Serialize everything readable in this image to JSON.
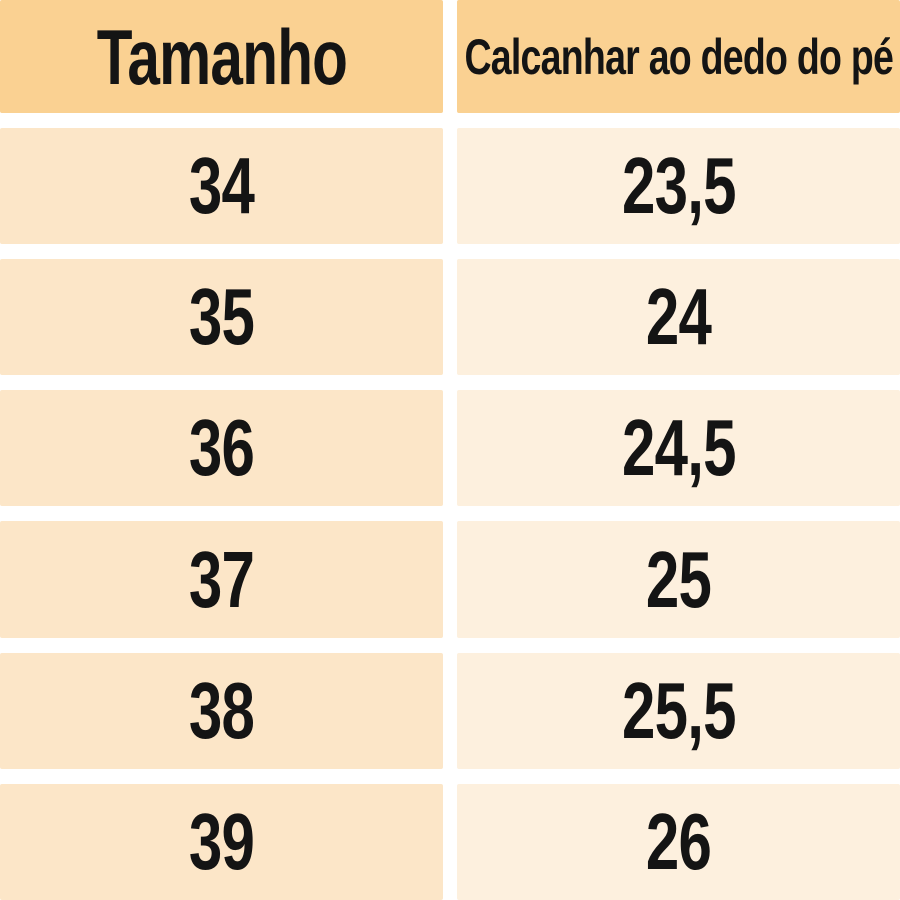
{
  "chart_data": {
    "type": "table",
    "title": "",
    "columns": [
      "Tamanho",
      "Calcanhar ao dedo do pé"
    ],
    "rows": [
      [
        "34",
        "23,5"
      ],
      [
        "35",
        "24"
      ],
      [
        "36",
        "24,5"
      ],
      [
        "37",
        "25"
      ],
      [
        "38",
        "25,5"
      ],
      [
        "39",
        "26"
      ]
    ]
  },
  "colors": {
    "header_bg": "#fad192",
    "size_cell_bg": "#fce6c8",
    "value_cell_bg": "#fdf0de",
    "gap_bg": "#ffffff",
    "text": "#141414"
  }
}
